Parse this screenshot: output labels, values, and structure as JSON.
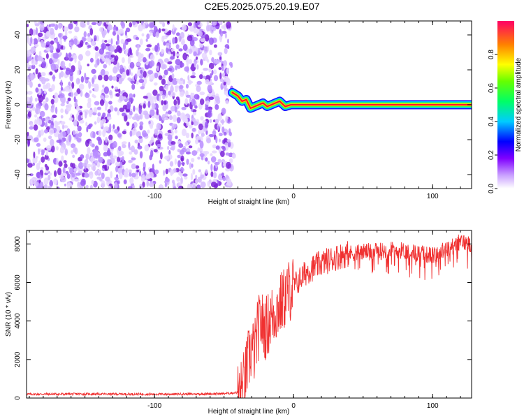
{
  "title": "C2E5.2025.075.20.19.E07",
  "colors": {
    "snr_line": "#f03030",
    "noise_purple": "#7a22d8",
    "background": "#ffffff"
  },
  "chart_data": [
    {
      "type": "heatmap",
      "xlabel": "Height of straight line (km)",
      "ylabel": "Frequency (Hz)",
      "xlim": [
        -192,
        128
      ],
      "ylim": [
        -48,
        48
      ],
      "xticks": [
        -100,
        0,
        100
      ],
      "yticks": [
        -40,
        -20,
        0,
        20,
        40
      ],
      "grid": false,
      "noise_region_x": [
        -192,
        -44
      ],
      "ridge": {
        "x": [
          -44,
          -40,
          -37,
          -34,
          -31,
          -28,
          -25,
          -22,
          -19,
          -16,
          -13,
          -10,
          -6,
          -2,
          0,
          5,
          20,
          40,
          60,
          80,
          100,
          128
        ],
        "y": [
          7,
          5,
          2,
          3,
          -2,
          -1,
          0,
          1,
          -1,
          0,
          1,
          2,
          -1,
          0,
          0,
          0,
          0,
          0,
          0,
          0,
          0,
          0
        ]
      },
      "colorbar": {
        "label": "Normalized spectral amplitude",
        "range": [
          0,
          1
        ],
        "ticks": [
          "0.0",
          "0.2",
          "0.4",
          "0.6",
          "0.8"
        ]
      }
    },
    {
      "type": "line",
      "xlabel": "Height of straight line (km)",
      "ylabel": "SNR (10 * v/v)",
      "xlim": [
        -192,
        128
      ],
      "ylim": [
        0,
        8700
      ],
      "xticks": [
        -100,
        0,
        100
      ],
      "yticks": [
        0,
        2000,
        4000,
        6000,
        8000
      ],
      "grid": false,
      "series": [
        {
          "x": [
            -192,
            -160,
            -130,
            -100,
            -70,
            -50,
            -38,
            -35,
            -33,
            -30,
            -28,
            -26,
            -24,
            -20,
            -16,
            -12,
            -8,
            -4,
            0,
            5,
            10,
            15,
            20,
            30,
            40,
            50,
            60,
            70,
            80,
            90,
            100,
            110,
            120,
            128
          ],
          "y": [
            200,
            210,
            205,
            200,
            210,
            230,
            300,
            1000,
            1800,
            2600,
            2400,
            3400,
            4000,
            3600,
            4200,
            4600,
            5000,
            5500,
            5800,
            6200,
            6600,
            6800,
            7000,
            7300,
            7500,
            7600,
            7600,
            7700,
            7650,
            7500,
            7400,
            7700,
            8100,
            8000
          ]
        }
      ]
    }
  ]
}
